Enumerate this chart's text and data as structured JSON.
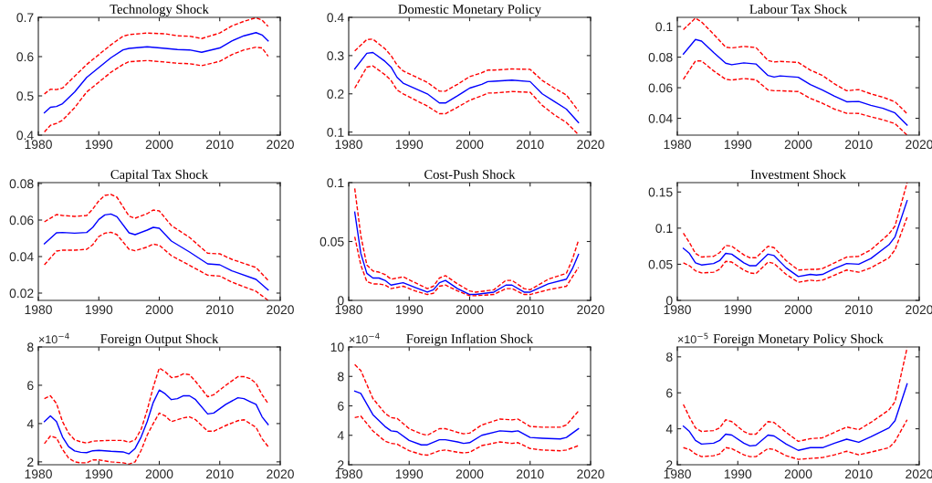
{
  "chart_data": [
    {
      "type": "line",
      "title": "Technology Shock",
      "x": [
        1981,
        1982,
        1983,
        1984,
        1986,
        1988,
        1990,
        1992,
        1994,
        1995,
        1998,
        2001,
        2003,
        2005,
        2007,
        2010,
        2012,
        2014,
        2016,
        2017,
        2018
      ],
      "xlim": [
        1980,
        2020
      ],
      "xticks": [
        1980,
        1990,
        2000,
        2010,
        2020
      ],
      "ylim": [
        0.4,
        0.7
      ],
      "yticks": [
        0.4,
        0.5,
        0.6,
        0.7
      ],
      "grid": false,
      "marker": "none",
      "series": [
        {
          "color": "#0000ff",
          "line_style": "solid",
          "values": [
            0.457,
            0.471,
            0.473,
            0.48,
            0.51,
            0.547,
            0.572,
            0.597,
            0.617,
            0.621,
            0.625,
            0.621,
            0.618,
            0.617,
            0.611,
            0.622,
            0.64,
            0.653,
            0.661,
            0.655,
            0.64
          ]
        },
        {
          "color": "#ff0000",
          "line_style": "dashed",
          "values": [
            0.505,
            0.517,
            0.516,
            0.52,
            0.55,
            0.58,
            0.605,
            0.63,
            0.652,
            0.656,
            0.66,
            0.658,
            0.653,
            0.652,
            0.646,
            0.66,
            0.678,
            0.69,
            0.699,
            0.693,
            0.677
          ]
        },
        {
          "color": "#ff0000",
          "line_style": "dashed",
          "values": [
            0.408,
            0.425,
            0.43,
            0.438,
            0.47,
            0.51,
            0.535,
            0.56,
            0.58,
            0.587,
            0.59,
            0.586,
            0.583,
            0.582,
            0.577,
            0.588,
            0.605,
            0.617,
            0.624,
            0.622,
            0.601
          ]
        }
      ]
    },
    {
      "type": "line",
      "title": "Domestic Monetary Policy",
      "x": [
        1981,
        1983,
        1984,
        1986,
        1987,
        1988,
        1989,
        1993,
        1995,
        1996,
        1998,
        2000,
        2002,
        2003,
        2004,
        2007,
        2010,
        2012,
        2014,
        2016,
        2018
      ],
      "xlim": [
        1980,
        2020
      ],
      "xticks": [
        1980,
        1990,
        2000,
        2010,
        2020
      ],
      "ylim": [
        0.092,
        0.4
      ],
      "yticks": [
        0.1,
        0.2,
        0.3,
        0.4
      ],
      "grid": false,
      "marker": "none",
      "series": [
        {
          "color": "#0000ff",
          "line_style": "solid",
          "values": [
            0.265,
            0.306,
            0.308,
            0.285,
            0.27,
            0.243,
            0.228,
            0.2,
            0.176,
            0.176,
            0.195,
            0.215,
            0.225,
            0.232,
            0.233,
            0.236,
            0.232,
            0.2,
            0.18,
            0.16,
            0.125
          ]
        },
        {
          "color": "#ff0000",
          "line_style": "dashed",
          "values": [
            0.312,
            0.342,
            0.343,
            0.318,
            0.3,
            0.275,
            0.26,
            0.23,
            0.207,
            0.207,
            0.225,
            0.245,
            0.255,
            0.262,
            0.262,
            0.265,
            0.264,
            0.235,
            0.215,
            0.197,
            0.155
          ]
        },
        {
          "color": "#ff0000",
          "line_style": "dashed",
          "values": [
            0.215,
            0.27,
            0.273,
            0.25,
            0.235,
            0.21,
            0.2,
            0.168,
            0.148,
            0.148,
            0.165,
            0.183,
            0.195,
            0.202,
            0.202,
            0.206,
            0.204,
            0.17,
            0.145,
            0.125,
            0.093
          ]
        }
      ]
    },
    {
      "type": "line",
      "title": "Labour Tax Shock",
      "x": [
        1981,
        1983,
        1984,
        1986,
        1988,
        1989,
        1991,
        1993,
        1995,
        1996,
        1997,
        2000,
        2002,
        2004,
        2006,
        2008,
        2010,
        2012,
        2014,
        2016,
        2018
      ],
      "xlim": [
        1980,
        2020
      ],
      "xticks": [
        1980,
        1990,
        2000,
        2010,
        2020
      ],
      "ylim": [
        0.029,
        0.106
      ],
      "yticks": [
        0.04,
        0.06,
        0.08,
        0.1
      ],
      "grid": false,
      "marker": "none",
      "series": [
        {
          "color": "#0000ff",
          "line_style": "solid",
          "values": [
            0.082,
            0.0915,
            0.0905,
            0.083,
            0.076,
            0.075,
            0.0762,
            0.0755,
            0.068,
            0.067,
            0.0677,
            0.0668,
            0.062,
            0.0585,
            0.0545,
            0.0508,
            0.051,
            0.0485,
            0.0465,
            0.0435,
            0.0355
          ]
        },
        {
          "color": "#ff0000",
          "line_style": "dashed",
          "values": [
            0.098,
            0.1055,
            0.103,
            0.095,
            0.0865,
            0.086,
            0.087,
            0.0863,
            0.0778,
            0.0768,
            0.0772,
            0.0765,
            0.0715,
            0.068,
            0.0625,
            0.058,
            0.0588,
            0.056,
            0.0538,
            0.0508,
            0.043
          ]
        },
        {
          "color": "#ff0000",
          "line_style": "dashed",
          "values": [
            0.0655,
            0.0775,
            0.0775,
            0.071,
            0.0655,
            0.065,
            0.066,
            0.0652,
            0.0585,
            0.058,
            0.058,
            0.0575,
            0.053,
            0.0498,
            0.046,
            0.0433,
            0.0432,
            0.041,
            0.039,
            0.0365,
            0.029
          ]
        }
      ]
    },
    {
      "type": "line",
      "title": "Capital Tax Shock",
      "x": [
        1981,
        1983,
        1984,
        1986,
        1988,
        1989,
        1990,
        1991,
        1992,
        1993,
        1995,
        1996,
        1998,
        1999,
        2000,
        2002,
        2005,
        2008,
        2010,
        2012,
        2016,
        2018
      ],
      "xlim": [
        1980,
        2020
      ],
      "xticks": [
        1980,
        1990,
        2000,
        2010,
        2020
      ],
      "ylim": [
        0.016,
        0.0805
      ],
      "yticks": [
        0.02,
        0.04,
        0.06,
        0.08
      ],
      "grid": false,
      "marker": "none",
      "series": [
        {
          "color": "#0000ff",
          "line_style": "solid",
          "values": [
            0.047,
            0.053,
            0.0532,
            0.0528,
            0.0532,
            0.056,
            0.0603,
            0.0628,
            0.0633,
            0.0618,
            0.053,
            0.052,
            0.0545,
            0.056,
            0.0555,
            0.0485,
            0.0425,
            0.036,
            0.0355,
            0.0322,
            0.0275,
            0.0217
          ]
        },
        {
          "color": "#ff0000",
          "line_style": "dashed",
          "values": [
            0.059,
            0.063,
            0.0625,
            0.062,
            0.0625,
            0.066,
            0.0705,
            0.0735,
            0.074,
            0.0725,
            0.0622,
            0.061,
            0.0635,
            0.0655,
            0.065,
            0.057,
            0.0505,
            0.0418,
            0.0415,
            0.0385,
            0.034,
            0.027
          ]
        },
        {
          "color": "#ff0000",
          "line_style": "dashed",
          "values": [
            0.0355,
            0.043,
            0.0435,
            0.0435,
            0.044,
            0.0465,
            0.051,
            0.0528,
            0.0533,
            0.052,
            0.044,
            0.0432,
            0.0452,
            0.0468,
            0.0462,
            0.0405,
            0.0352,
            0.0298,
            0.0293,
            0.026,
            0.021,
            0.016
          ]
        }
      ]
    },
    {
      "type": "line",
      "title": "Cost-Push Shock",
      "x": [
        1981,
        1982,
        1983,
        1984,
        1985,
        1986,
        1987,
        1989,
        1991,
        1993,
        1994,
        1995,
        1996,
        1998,
        2000,
        2001,
        2004,
        2006,
        2007,
        2009,
        2010,
        2013,
        2016,
        2017,
        2018
      ],
      "xlim": [
        1980,
        2020
      ],
      "xticks": [
        1980,
        1990,
        2000,
        2010,
        2020
      ],
      "ylim": [
        0,
        0.1
      ],
      "yticks": [
        0,
        0.05,
        0.1
      ],
      "grid": false,
      "marker": "none",
      "series": [
        {
          "color": "#0000ff",
          "line_style": "solid",
          "values": [
            0.075,
            0.04,
            0.023,
            0.019,
            0.019,
            0.017,
            0.013,
            0.015,
            0.011,
            0.007,
            0.009,
            0.015,
            0.017,
            0.01,
            0.005,
            0.005,
            0.007,
            0.013,
            0.013,
            0.007,
            0.007,
            0.014,
            0.018,
            0.027,
            0.039
          ]
        },
        {
          "color": "#ff0000",
          "line_style": "dashed",
          "values": [
            0.095,
            0.055,
            0.03,
            0.025,
            0.024,
            0.022,
            0.018,
            0.02,
            0.015,
            0.01,
            0.012,
            0.019,
            0.021,
            0.014,
            0.008,
            0.007,
            0.009,
            0.017,
            0.017,
            0.01,
            0.009,
            0.018,
            0.023,
            0.035,
            0.051
          ]
        },
        {
          "color": "#ff0000",
          "line_style": "dashed",
          "values": [
            0.054,
            0.03,
            0.016,
            0.014,
            0.014,
            0.013,
            0.01,
            0.012,
            0.008,
            0.005,
            0.006,
            0.012,
            0.013,
            0.008,
            0.004,
            0.004,
            0.005,
            0.01,
            0.01,
            0.005,
            0.005,
            0.009,
            0.012,
            0.02,
            0.028
          ]
        }
      ]
    },
    {
      "type": "line",
      "title": "Investment Shock",
      "x": [
        1981,
        1982,
        1983,
        1984,
        1986,
        1987,
        1988,
        1989,
        1991,
        1992,
        1993,
        1995,
        1996,
        1998,
        2000,
        2002,
        2003,
        2004,
        2006,
        2008,
        2010,
        2012,
        2015,
        2016,
        2018
      ],
      "xlim": [
        1980,
        2020
      ],
      "xticks": [
        1980,
        1990,
        2000,
        2010,
        2020
      ],
      "ylim": [
        0,
        0.163
      ],
      "yticks": [
        0,
        0.05,
        0.1,
        0.15
      ],
      "grid": false,
      "marker": "none",
      "series": [
        {
          "color": "#0000ff",
          "line_style": "solid",
          "values": [
            0.072,
            0.065,
            0.052,
            0.049,
            0.051,
            0.055,
            0.065,
            0.064,
            0.052,
            0.048,
            0.048,
            0.064,
            0.062,
            0.045,
            0.033,
            0.036,
            0.035,
            0.036,
            0.044,
            0.051,
            0.05,
            0.058,
            0.077,
            0.088,
            0.138
          ]
        },
        {
          "color": "#ff0000",
          "line_style": "dashed",
          "values": [
            0.093,
            0.08,
            0.065,
            0.06,
            0.061,
            0.066,
            0.076,
            0.075,
            0.063,
            0.059,
            0.059,
            0.075,
            0.073,
            0.055,
            0.042,
            0.043,
            0.043,
            0.044,
            0.052,
            0.06,
            0.061,
            0.07,
            0.092,
            0.103,
            0.163
          ]
        },
        {
          "color": "#ff0000",
          "line_style": "dashed",
          "values": [
            0.052,
            0.048,
            0.041,
            0.038,
            0.039,
            0.043,
            0.054,
            0.053,
            0.042,
            0.038,
            0.037,
            0.053,
            0.051,
            0.036,
            0.025,
            0.028,
            0.027,
            0.028,
            0.035,
            0.042,
            0.039,
            0.045,
            0.059,
            0.07,
            0.115
          ]
        }
      ]
    },
    {
      "type": "line",
      "title": "Foreign Output Shock",
      "annotations": [
        "×10$^{−4}$"
      ],
      "x": [
        1981,
        1982,
        1983,
        1984,
        1985,
        1986,
        1987,
        1988,
        1989,
        1990,
        1992,
        1994,
        1995,
        1996,
        1997,
        1998,
        1999,
        2000,
        2001,
        2002,
        2003,
        2004,
        2005,
        2006,
        2008,
        2009,
        2011,
        2013,
        2014,
        2015,
        2016,
        2017,
        2018
      ],
      "xlim": [
        1980,
        2020
      ],
      "xticks": [
        1980,
        1990,
        2000,
        2010,
        2020
      ],
      "ylim": [
        1.85,
        8
      ],
      "yticks": [
        2,
        4,
        6,
        8
      ],
      "grid": false,
      "marker": "none",
      "series": [
        {
          "color": "#0000ff",
          "line_style": "solid",
          "values": [
            4.1,
            4.4,
            4.1,
            3.3,
            2.8,
            2.57,
            2.5,
            2.48,
            2.58,
            2.6,
            2.55,
            2.52,
            2.42,
            2.7,
            3.3,
            4.1,
            5.1,
            5.75,
            5.55,
            5.25,
            5.3,
            5.45,
            5.45,
            5.25,
            4.5,
            4.55,
            5.0,
            5.35,
            5.3,
            5.15,
            5.0,
            4.35,
            3.95
          ]
        },
        {
          "color": "#ff0000",
          "line_style": "dashed",
          "values": [
            5.3,
            5.45,
            5.05,
            4.1,
            3.5,
            3.15,
            3.05,
            2.98,
            3.08,
            3.1,
            3.12,
            3.12,
            3.02,
            3.15,
            3.7,
            4.7,
            5.9,
            6.9,
            6.7,
            6.4,
            6.45,
            6.6,
            6.55,
            6.2,
            5.4,
            5.5,
            6.0,
            6.45,
            6.45,
            6.35,
            6.1,
            5.5,
            5.05
          ]
        },
        {
          "color": "#ff0000",
          "line_style": "dashed",
          "values": [
            2.95,
            3.35,
            3.25,
            2.65,
            2.2,
            2.0,
            1.95,
            1.95,
            2.1,
            2.1,
            2.0,
            1.95,
            1.88,
            2.0,
            2.6,
            3.4,
            4.0,
            4.55,
            4.4,
            4.1,
            4.2,
            4.3,
            4.35,
            4.2,
            3.6,
            3.6,
            3.9,
            4.15,
            4.2,
            4.0,
            3.8,
            3.2,
            2.8
          ]
        }
      ]
    },
    {
      "type": "line",
      "title": "Foreign Inflation Shock",
      "annotations": [
        "×10$^{−4}$"
      ],
      "x": [
        1981,
        1982,
        1984,
        1986,
        1987,
        1988,
        1990,
        1992,
        1993,
        1995,
        1996,
        1998,
        1999,
        2000,
        2002,
        2005,
        2007,
        2008,
        2010,
        2012,
        2015,
        2016,
        2018
      ],
      "xlim": [
        1980,
        2020
      ],
      "xticks": [
        1980,
        1990,
        2000,
        2010,
        2020
      ],
      "ylim": [
        2,
        10
      ],
      "yticks": [
        2,
        4,
        6,
        8,
        10
      ],
      "grid": false,
      "marker": "none",
      "series": [
        {
          "color": "#0000ff",
          "line_style": "solid",
          "values": [
            7.0,
            6.85,
            5.4,
            4.6,
            4.3,
            4.25,
            3.65,
            3.35,
            3.35,
            3.7,
            3.7,
            3.55,
            3.45,
            3.5,
            4.0,
            4.3,
            4.25,
            4.3,
            3.85,
            3.8,
            3.75,
            3.85,
            4.45
          ]
        },
        {
          "color": "#ff0000",
          "line_style": "dashed",
          "values": [
            8.8,
            8.4,
            6.5,
            5.5,
            5.2,
            5.15,
            4.45,
            4.1,
            4.0,
            4.45,
            4.45,
            4.2,
            4.1,
            4.15,
            4.7,
            5.1,
            5.05,
            5.1,
            4.6,
            4.55,
            4.55,
            4.7,
            5.65
          ]
        },
        {
          "color": "#ff0000",
          "line_style": "dashed",
          "values": [
            5.2,
            5.3,
            4.3,
            3.6,
            3.45,
            3.4,
            2.95,
            2.7,
            2.65,
            2.95,
            3.0,
            2.85,
            2.8,
            2.85,
            3.3,
            3.55,
            3.45,
            3.5,
            3.1,
            3.0,
            2.95,
            3.0,
            3.3
          ]
        }
      ]
    },
    {
      "type": "line",
      "title": "Foreign Monetary Policy Shock",
      "annotations": [
        "×10$^{−5}$"
      ],
      "x": [
        1981,
        1982,
        1983,
        1984,
        1986,
        1987,
        1988,
        1989,
        1991,
        1992,
        1993,
        1995,
        1996,
        1998,
        2000,
        2002,
        2004,
        2006,
        2008,
        2010,
        2012,
        2015,
        2016,
        2018
      ],
      "xlim": [
        1980,
        2020
      ],
      "xticks": [
        1980,
        1990,
        2000,
        2010,
        2020
      ],
      "ylim": [
        2,
        8.55
      ],
      "yticks": [
        2,
        4,
        6,
        8
      ],
      "grid": false,
      "marker": "none",
      "series": [
        {
          "color": "#0000ff",
          "line_style": "solid",
          "values": [
            4.15,
            3.85,
            3.35,
            3.15,
            3.2,
            3.35,
            3.7,
            3.65,
            3.2,
            3.05,
            3.08,
            3.65,
            3.6,
            3.15,
            2.8,
            2.95,
            2.95,
            3.2,
            3.42,
            3.25,
            3.55,
            4.05,
            4.45,
            6.5
          ]
        },
        {
          "color": "#ff0000",
          "line_style": "dashed",
          "values": [
            5.35,
            4.65,
            4.05,
            3.85,
            3.9,
            4.05,
            4.5,
            4.4,
            3.85,
            3.7,
            3.7,
            4.4,
            4.35,
            3.8,
            3.3,
            3.45,
            3.5,
            3.8,
            4.1,
            3.95,
            4.35,
            5.05,
            5.5,
            8.5
          ]
        },
        {
          "color": "#ff0000",
          "line_style": "dashed",
          "values": [
            2.95,
            2.85,
            2.6,
            2.45,
            2.5,
            2.6,
            2.95,
            2.9,
            2.55,
            2.45,
            2.45,
            2.9,
            2.85,
            2.5,
            2.3,
            2.35,
            2.4,
            2.55,
            2.75,
            2.55,
            2.7,
            2.95,
            3.3,
            4.5
          ]
        }
      ]
    }
  ]
}
